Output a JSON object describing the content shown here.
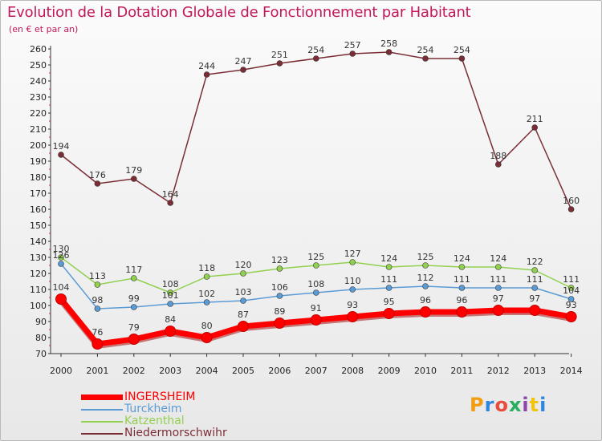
{
  "title": "Evolution de la Dotation Globale de Fonctionnement par Habitant",
  "subtitle": "(en € et par an)",
  "logo": {
    "text": "Proxiti",
    "colors": [
      "#f39c12",
      "#2e86de",
      "#e74c3c",
      "#27ae60",
      "#8e44ad",
      "#f1c40f",
      "#2e86de"
    ]
  },
  "chart_data": {
    "type": "line",
    "x": [
      "2000",
      "2001",
      "2002",
      "2003",
      "2004",
      "2005",
      "2006",
      "2007",
      "2008",
      "2009",
      "2010",
      "2011",
      "2012",
      "2013",
      "2014"
    ],
    "ylim": [
      70,
      260
    ],
    "yticks": [
      70,
      80,
      90,
      100,
      110,
      120,
      130,
      140,
      150,
      160,
      170,
      180,
      190,
      200,
      210,
      220,
      230,
      240,
      250,
      260
    ],
    "grid": false,
    "legend_position": "bottom-left",
    "series": [
      {
        "name": "INGERSHEIM",
        "color": "#ff0000",
        "values": [
          104,
          76,
          79,
          84,
          80,
          87,
          89,
          91,
          93,
          95,
          96,
          96,
          97,
          97,
          93
        ]
      },
      {
        "name": "Turckheim",
        "color": "#5b9bd5",
        "values": [
          126,
          98,
          99,
          101,
          102,
          103,
          106,
          108,
          110,
          111,
          112,
          111,
          111,
          111,
          104
        ]
      },
      {
        "name": "Katzenthal",
        "color": "#92d050",
        "values": [
          130,
          113,
          117,
          108,
          118,
          120,
          123,
          125,
          127,
          124,
          125,
          124,
          124,
          122,
          111
        ]
      },
      {
        "name": "Niedermorschwihr",
        "color": "#7b2d35",
        "values": [
          194,
          176,
          179,
          164,
          244,
          247,
          251,
          254,
          257,
          258,
          254,
          254,
          188,
          211,
          160
        ]
      }
    ]
  }
}
